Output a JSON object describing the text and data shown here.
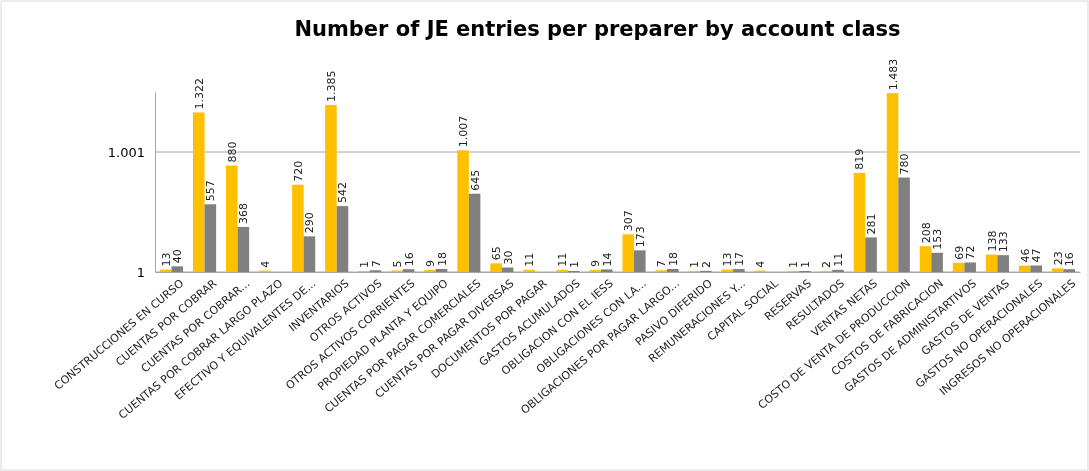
{
  "chart_data": {
    "type": "bar",
    "title": "Number of JE entries per preparer by account class",
    "categories": [
      "CONSTRUCCIONES EN CURSO",
      "CUENTAS POR COBRAR",
      "CUENTAS POR COBRAR...",
      "CUENTAS POR COBRAR LARGO PLAZO",
      "EFECTIVO Y EQUIVALENTES DE...",
      "INVENTARIOS",
      "OTROS ACTIVOS",
      "OTROS ACTIVOS CORRIENTES",
      "PROPIEDAD PLANTA Y EQUIPO",
      "CUENTAS POR PAGAR COMERCIALES",
      "CUENTAS POR PAGAR DIVERSAS",
      "DOCUMENTOS POR PAGAR",
      "GASTOS ACUMULADOS",
      "OBLIGACION CON EL IESS",
      "OBLIGACIONES CON LA...",
      "OBLIGACIONES POR PAGAR LARGO...",
      "PASIVO DIFERIDO",
      "REMUNERACIONES Y...",
      "CAPITAL SOCIAL",
      "RESERVAS",
      "RESULTADOS",
      "VENTAS NETAS",
      "COSTO DE VENTA DE PRODUCCION",
      "COSTOS DE FABRICACION",
      "GASTOS DE ADMINISTARTIVOS",
      "GASTOS DE VENTAS",
      "GASTOS NO OPERACIONALES",
      "INGRESOS NO OPERACIONALES"
    ],
    "series": [
      {
        "color": "#ffc000",
        "values": [
          13,
          1322,
          880,
          4,
          720,
          1385,
          1,
          5,
          9,
          1007,
          65,
          11,
          11,
          9,
          307,
          7,
          1,
          13,
          4,
          1,
          2,
          819,
          1483,
          208,
          69,
          138,
          46,
          23
        ],
        "value_labels": [
          "13",
          "1.322",
          "880",
          "4",
          "720",
          "1.385",
          "1",
          "5",
          "9",
          "1.007",
          "65",
          "11",
          "11",
          "9",
          "307",
          "7",
          "1",
          "13",
          "4",
          "1",
          "2",
          "819",
          "1.483",
          "208",
          "69",
          "138",
          "46",
          "23"
        ]
      },
      {
        "color": "#808080",
        "values": [
          40,
          557,
          368,
          null,
          290,
          542,
          7,
          16,
          18,
          645,
          30,
          null,
          1,
          14,
          173,
          18,
          2,
          17,
          null,
          1,
          11,
          281,
          780,
          153,
          72,
          133,
          47,
          16
        ],
        "value_labels": [
          "40",
          "557",
          "368",
          null,
          "290",
          "542",
          "7",
          "16",
          "18",
          "645",
          "30",
          null,
          "1",
          "14",
          "173",
          "18",
          "2",
          "17",
          null,
          "1",
          "11",
          "281",
          "780",
          "153",
          "72",
          "133",
          "47",
          "16"
        ]
      }
    ],
    "ylim": [
      1,
      1501
    ],
    "yticks": [
      1,
      {
        "value": 1001,
        "label": "1.001"
      }
    ],
    "grid": "y"
  }
}
